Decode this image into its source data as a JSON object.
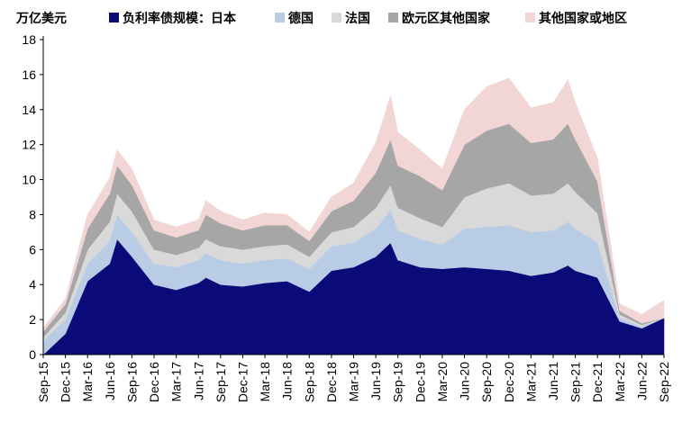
{
  "chart_data": {
    "type": "area",
    "stacked": true,
    "unit_label": "万亿美元",
    "ylim": [
      0,
      18
    ],
    "yticks": [
      0,
      2,
      4,
      6,
      8,
      10,
      12,
      14,
      16,
      18
    ],
    "xticks": [
      "Sep-15",
      "Dec-15",
      "Mar-16",
      "Jun-16",
      "Sep-16",
      "Dec-16",
      "Mar-17",
      "Jun-17",
      "Sep-17",
      "Dec-17",
      "Mar-18",
      "Jun-18",
      "Sep-18",
      "Dec-18",
      "Mar-19",
      "Jun-19",
      "Sep-19",
      "Dec-19",
      "Mar-20",
      "Jun-20",
      "Sep-20",
      "Dec-20",
      "Mar-21",
      "Jun-21",
      "Sep-21",
      "Dec-21",
      "Mar-22",
      "Jun-22",
      "Sep-22"
    ],
    "x": [
      "Sep-15",
      "Dec-15",
      "Mar-16",
      "Jun-16",
      "Jul-16",
      "Sep-16",
      "Dec-16",
      "Mar-17",
      "Jun-17",
      "Jul-17",
      "Sep-17",
      "Dec-17",
      "Mar-18",
      "Jun-18",
      "Sep-18",
      "Dec-18",
      "Mar-19",
      "Jun-19",
      "Aug-19",
      "Sep-19",
      "Dec-19",
      "Mar-20",
      "Jun-20",
      "Sep-20",
      "Dec-20",
      "Mar-21",
      "Jun-21",
      "Aug-21",
      "Sep-21",
      "Dec-21",
      "Mar-22",
      "Jun-22",
      "Sep-22"
    ],
    "legend_position": "top",
    "series": [
      {
        "name": "负利率债规模：日本",
        "color": "#0a0a78",
        "values": [
          0.0,
          1.2,
          4.2,
          5.2,
          6.6,
          5.6,
          4.0,
          3.7,
          4.1,
          4.4,
          4.0,
          3.9,
          4.1,
          4.2,
          3.6,
          4.8,
          5.0,
          5.6,
          6.4,
          5.4,
          5.0,
          4.9,
          5.0,
          4.9,
          4.8,
          4.5,
          4.7,
          5.1,
          4.8,
          4.4,
          1.9,
          1.5,
          2.1
        ]
      },
      {
        "name": "德国",
        "color": "#b8cce6",
        "values": [
          0.8,
          0.8,
          1.0,
          1.3,
          1.4,
          1.4,
          1.2,
          1.3,
          1.3,
          1.4,
          1.4,
          1.3,
          1.3,
          1.3,
          1.3,
          1.4,
          1.4,
          1.6,
          1.9,
          1.7,
          1.6,
          1.4,
          2.2,
          2.4,
          2.6,
          2.5,
          2.4,
          2.5,
          2.4,
          2.0,
          0.2,
          0.1,
          0.0
        ]
      },
      {
        "name": "法国",
        "color": "#d9d9d9",
        "values": [
          0.2,
          0.4,
          0.8,
          1.1,
          1.2,
          1.2,
          0.8,
          0.7,
          0.7,
          0.8,
          0.8,
          0.8,
          0.8,
          0.8,
          0.7,
          0.8,
          0.9,
          1.2,
          1.4,
          1.3,
          1.2,
          1.0,
          1.8,
          2.2,
          2.4,
          2.1,
          2.1,
          2.2,
          2.1,
          1.7,
          0.2,
          0.1,
          0.0
        ]
      },
      {
        "name": "欧元区其他国家",
        "color": "#a6a6a6",
        "values": [
          0.3,
          0.5,
          1.2,
          1.6,
          1.6,
          1.5,
          1.1,
          1.0,
          1.0,
          1.4,
          1.3,
          1.1,
          1.2,
          1.1,
          0.9,
          1.2,
          1.5,
          2.0,
          2.6,
          2.4,
          2.4,
          2.1,
          3.0,
          3.3,
          3.4,
          3.0,
          3.1,
          3.4,
          3.0,
          1.8,
          0.2,
          0.1,
          0.0
        ]
      },
      {
        "name": "其他国家或地区",
        "color": "#f2d6d6",
        "values": [
          0.2,
          0.3,
          0.8,
          0.9,
          0.9,
          0.9,
          0.6,
          0.6,
          0.6,
          0.8,
          0.7,
          0.6,
          0.7,
          0.6,
          0.5,
          0.8,
          1.0,
          1.7,
          2.5,
          1.9,
          1.5,
          1.2,
          2.0,
          2.5,
          2.6,
          2.0,
          2.1,
          2.5,
          2.1,
          1.3,
          0.4,
          0.5,
          1.0
        ]
      }
    ]
  }
}
